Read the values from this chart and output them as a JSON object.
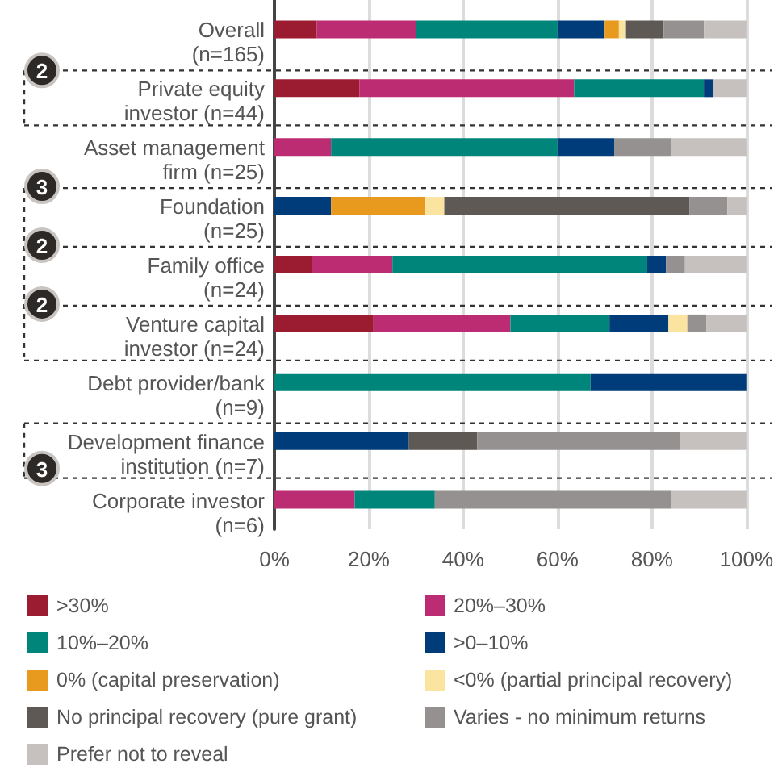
{
  "chart_data": {
    "type": "bar",
    "orientation": "horizontal",
    "stacked": true,
    "categories": [
      "Overall\n(n=165)",
      "Private equity\ninvestor (n=44)",
      "Asset management\nfirm (n=25)",
      "Foundation\n(n=25)",
      "Family office\n(n=24)",
      "Venture capital\ninvestor (n=24)",
      "Debt provider/bank\n(n=9)",
      "Development finance\ninstitution (n=7)",
      "Corporate investor\n(n=6)"
    ],
    "series": [
      {
        "name": ">30%",
        "color": "#9b1b30",
        "values": [
          9,
          18,
          0,
          0,
          8,
          21,
          0,
          0,
          0
        ]
      },
      {
        "name": "20%–30%",
        "color": "#bc2c72",
        "values": [
          21,
          45.5,
          12,
          0,
          17,
          29,
          0,
          0,
          17
        ]
      },
      {
        "name": "10%–20%",
        "color": "#00857a",
        "values": [
          30,
          27.5,
          48,
          0,
          54,
          21,
          67,
          0,
          17
        ]
      },
      {
        "name": ">0–10%",
        "color": "#003b7a",
        "values": [
          10,
          2,
          12,
          12,
          4,
          12.5,
          33,
          28.5,
          0
        ]
      },
      {
        "name": "0% (capital preservation)",
        "color": "#e89a1e",
        "values": [
          3,
          0,
          0,
          20,
          0,
          0,
          0,
          0,
          0
        ]
      },
      {
        "name": "<0% (partial principal recovery)",
        "color": "#fbe3a0",
        "values": [
          1.5,
          0,
          0,
          4,
          0,
          4,
          0,
          0,
          0
        ]
      },
      {
        "name": "No principal recovery (pure grant)",
        "color": "#5e5955",
        "values": [
          8,
          0,
          0,
          52,
          0,
          0,
          0,
          14.5,
          0
        ]
      },
      {
        "name": "Varies - no minimum returns",
        "color": "#959190",
        "values": [
          8.5,
          0,
          12,
          8,
          4,
          4,
          0,
          43,
          50
        ]
      },
      {
        "name": "Prefer not to reveal",
        "color": "#c6c1be",
        "values": [
          9,
          7,
          16,
          4,
          13,
          8.5,
          0,
          14,
          16
        ]
      }
    ],
    "xlim": [
      0,
      100
    ],
    "xticks": [
      {
        "value": 0,
        "label": "0%"
      },
      {
        "value": 20,
        "label": "20%"
      },
      {
        "value": 40,
        "label": "40%"
      },
      {
        "value": 60,
        "label": "60%"
      },
      {
        "value": 80,
        "label": "80%"
      },
      {
        "value": 100,
        "label": "100%"
      }
    ],
    "grid": "x",
    "legend": "bottom",
    "annotations": [
      "2",
      "3",
      "2",
      "2",
      "3"
    ]
  }
}
